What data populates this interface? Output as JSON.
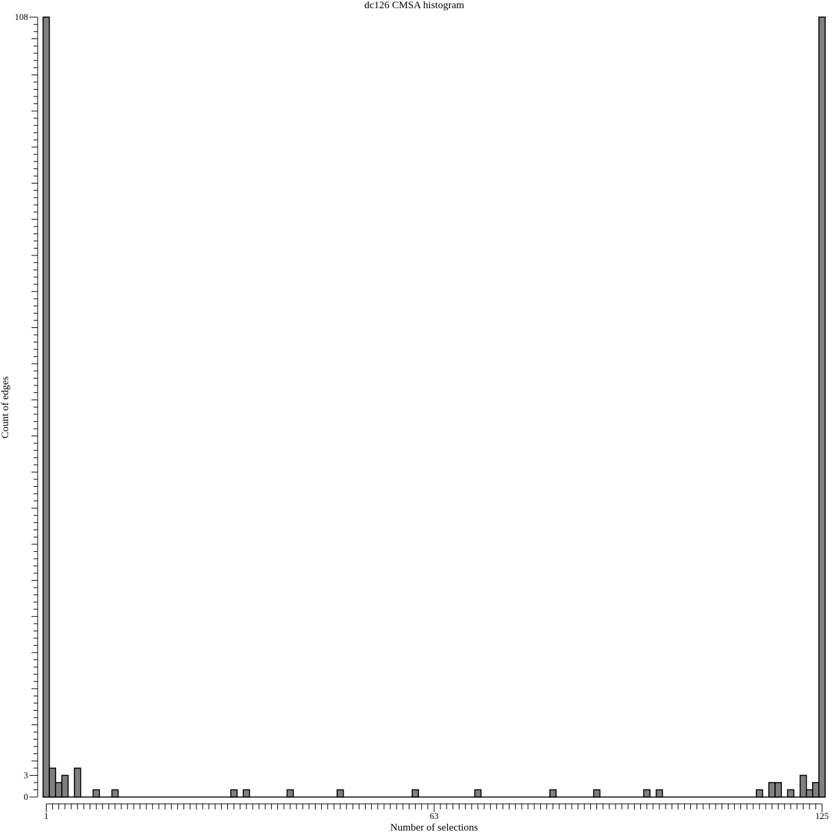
{
  "chart_data": {
    "type": "bar",
    "title": "dc126 CMSA histogram",
    "xlabel": "Number of selections",
    "ylabel": "Count of edges",
    "x_range": [
      1,
      125
    ],
    "ylim": [
      0,
      108
    ],
    "x_tick_labels": [
      1,
      63,
      125
    ],
    "y_tick_labels": [
      0,
      3,
      108
    ],
    "grid": false,
    "legend": "none",
    "bar_color": "#808080",
    "bar_edge_color": "#000000",
    "x": [
      1,
      2,
      3,
      4,
      5,
      6,
      7,
      8,
      9,
      10,
      11,
      12,
      13,
      14,
      15,
      16,
      17,
      18,
      19,
      20,
      21,
      22,
      23,
      24,
      25,
      26,
      27,
      28,
      29,
      30,
      31,
      32,
      33,
      34,
      35,
      36,
      37,
      38,
      39,
      40,
      41,
      42,
      43,
      44,
      45,
      46,
      47,
      48,
      49,
      50,
      51,
      52,
      53,
      54,
      55,
      56,
      57,
      58,
      59,
      60,
      61,
      62,
      63,
      64,
      65,
      66,
      67,
      68,
      69,
      70,
      71,
      72,
      73,
      74,
      75,
      76,
      77,
      78,
      79,
      80,
      81,
      82,
      83,
      84,
      85,
      86,
      87,
      88,
      89,
      90,
      91,
      92,
      93,
      94,
      95,
      96,
      97,
      98,
      99,
      100,
      101,
      102,
      103,
      104,
      105,
      106,
      107,
      108,
      109,
      110,
      111,
      112,
      113,
      114,
      115,
      116,
      117,
      118,
      119,
      120,
      121,
      122,
      123,
      124,
      125
    ],
    "values": [
      108,
      4,
      2,
      3,
      0,
      4,
      0,
      0,
      1,
      0,
      0,
      1,
      0,
      0,
      0,
      0,
      0,
      0,
      0,
      0,
      0,
      0,
      0,
      0,
      0,
      0,
      0,
      0,
      0,
      0,
      1,
      0,
      1,
      0,
      0,
      0,
      0,
      0,
      0,
      1,
      0,
      0,
      0,
      0,
      0,
      0,
      0,
      1,
      0,
      0,
      0,
      0,
      0,
      0,
      0,
      0,
      0,
      0,
      0,
      1,
      0,
      0,
      0,
      0,
      0,
      0,
      0,
      0,
      0,
      1,
      0,
      0,
      0,
      0,
      0,
      0,
      0,
      0,
      0,
      0,
      0,
      1,
      0,
      0,
      0,
      0,
      0,
      0,
      1,
      0,
      0,
      0,
      0,
      0,
      0,
      0,
      1,
      0,
      1,
      0,
      0,
      0,
      0,
      0,
      0,
      0,
      0,
      0,
      0,
      0,
      0,
      0,
      0,
      0,
      1,
      0,
      2,
      2,
      0,
      1,
      0,
      3,
      1,
      2,
      108
    ]
  }
}
